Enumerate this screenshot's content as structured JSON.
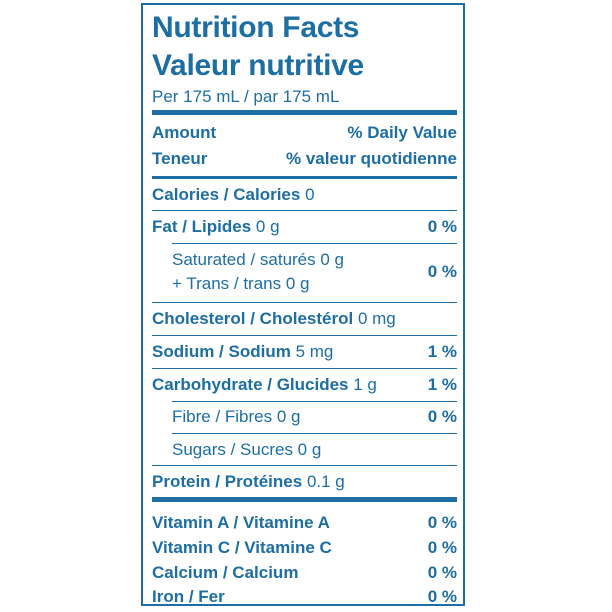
{
  "label": {
    "title_en": "Nutrition Facts",
    "title_fr": "Valeur nutritive",
    "serving": "Per 175 mL / par 175 mL",
    "header": {
      "amount_en": "Amount",
      "amount_fr": "Teneur",
      "dv_en": "% Daily Value",
      "dv_fr": "% valeur quotidienne"
    },
    "rows": {
      "calories": {
        "name": "Calories / Calories",
        "amount": "0",
        "pct": ""
      },
      "fat": {
        "name": "Fat / Lipides",
        "amount": "0 g",
        "pct": "0 %"
      },
      "saturated_line1": "Saturated / saturés 0 g",
      "saturated_line2": "+ Trans / trans 0 g",
      "saturated_pct": "0 %",
      "cholesterol": {
        "name": "Cholesterol / Cholestérol",
        "amount": "0 mg",
        "pct": ""
      },
      "sodium": {
        "name": "Sodium / Sodium",
        "amount": "5 mg",
        "pct": "1 %"
      },
      "carbohydrate": {
        "name": "Carbohydrate / Glucides",
        "amount": "1 g",
        "pct": "1 %"
      },
      "fibre": {
        "name": "Fibre / Fibres 0 g",
        "pct": "0 %"
      },
      "sugars": {
        "name": "Sugars / Sucres 0 g"
      },
      "protein": {
        "name": "Protein / Protéines",
        "amount": "0.1 g"
      }
    },
    "vitamins": [
      {
        "name": "Vitamin A / Vitamine A",
        "pct": "0 %"
      },
      {
        "name": "Vitamin C / Vitamine C",
        "pct": "0 %"
      },
      {
        "name": "Calcium / Calcium",
        "pct": "0 %"
      },
      {
        "name": "Iron / Fer",
        "pct": "0 %"
      }
    ],
    "colors": {
      "ink": "#1d6ea3",
      "background": "#ffffff"
    }
  }
}
